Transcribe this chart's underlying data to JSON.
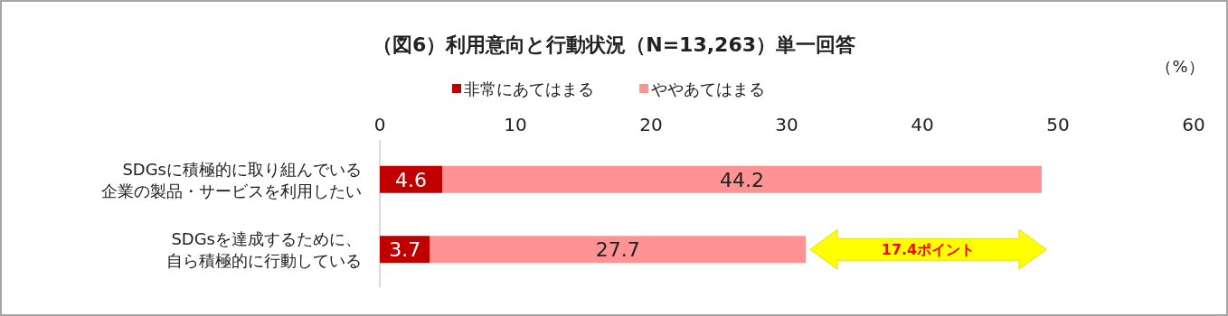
{
  "chart_data": {
    "type": "bar",
    "orientation": "horizontal",
    "stacked": true,
    "title": "（図6）利用意向と行動状況（N=13,263）単一回答",
    "xlabel": "（%）",
    "categories": [
      "SDGsに積極的に取り組んでいる企業の製品・サービスを利用したい",
      "SDGsを達成するために、自ら積極的に行動している"
    ],
    "series": [
      {
        "name": "非常にあてはまる",
        "color": "#c00000",
        "values": [
          4.6,
          3.7
        ]
      },
      {
        "name": "ややあてはまる",
        "color": "#ff9393",
        "values": [
          44.2,
          27.7
        ]
      }
    ],
    "xlim": [
      0,
      60
    ],
    "xticks": [
      0,
      10,
      20,
      30,
      40,
      50,
      60
    ],
    "data_labels": true,
    "legend": "top",
    "grid": false,
    "annotations": [
      "17.4ポイント"
    ]
  }
}
